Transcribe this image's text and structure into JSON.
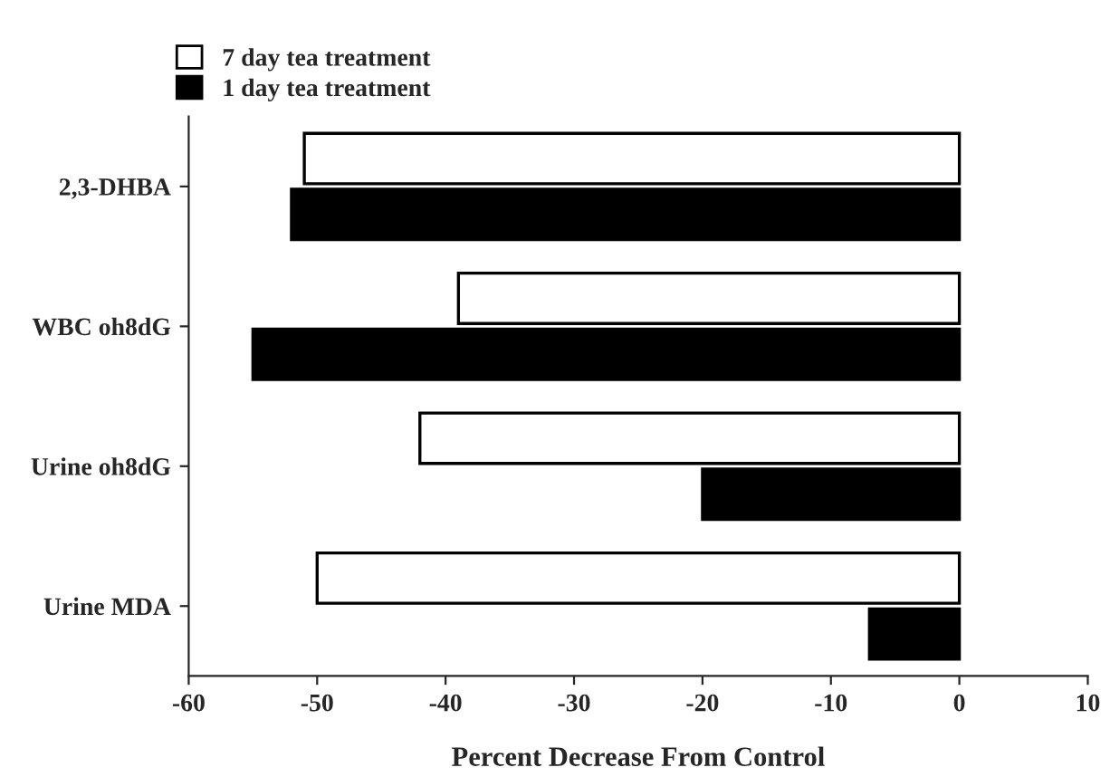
{
  "chart_data": {
    "type": "bar",
    "orientation": "horizontal",
    "xlabel": "Percent Decrease From Control",
    "categories": [
      "2,3-DHBA",
      "WBC oh8dG",
      "Urine oh8dG",
      "Urine MDA"
    ],
    "series": [
      {
        "name": "7 day tea treatment",
        "color": "#ffffff",
        "values": [
          -51,
          -39,
          -42,
          -50
        ]
      },
      {
        "name": "1 day tea treatment",
        "color": "#000000",
        "values": [
          -52,
          -55,
          -20,
          -7
        ]
      }
    ],
    "xlim": [
      -60,
      10
    ],
    "xticks": [
      -60,
      -50,
      -40,
      -30,
      -20,
      -10,
      0,
      10
    ],
    "grid": false,
    "legend": "top left"
  }
}
